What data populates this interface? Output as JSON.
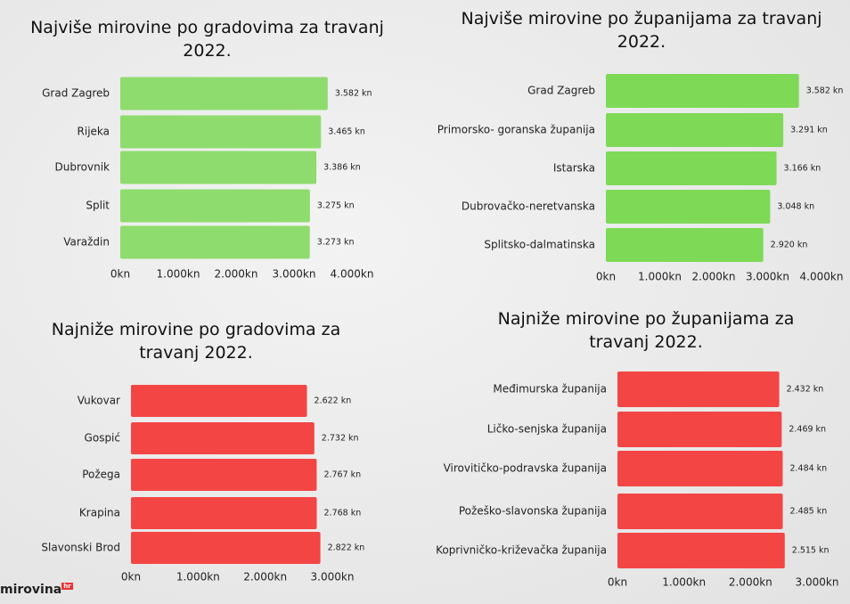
{
  "chart_data": [
    {
      "type": "bar",
      "orientation": "horizontal",
      "title": "Najviše mirovine po gradovima za travanj 2022.",
      "categories": [
        "Grad Zagreb",
        "Rijeka",
        "Dubrovnik",
        "Split",
        "Varaždin"
      ],
      "values": [
        3582,
        3465,
        3386,
        3275,
        3273
      ],
      "value_labels": [
        "3.582 kn",
        "3.465 kn",
        "3.386 kn",
        "3.275 kn",
        "3.273 kn"
      ],
      "color": "#8fdc6e",
      "xlim": [
        0,
        4000
      ],
      "xticks": [
        {
          "value": 0,
          "label": "0kn"
        },
        {
          "value": 1000,
          "label": "1.000kn"
        },
        {
          "value": 2000,
          "label": "2.000kn"
        },
        {
          "value": 3000,
          "label": "3.000kn"
        },
        {
          "value": 4000,
          "label": "4.000kn"
        }
      ]
    },
    {
      "type": "bar",
      "orientation": "horizontal",
      "title": "Najviše mirovine po županijama za travanj 2022.",
      "categories": [
        "Grad Zagreb",
        "Primorsko- goranska županija",
        "Istarska",
        "Dubrovačko-neretvanska",
        "Splitsko-dalmatinska"
      ],
      "values": [
        3582,
        3291,
        3166,
        3048,
        2920
      ],
      "value_labels": [
        "3.582 kn",
        "3.291 kn",
        "3.166 kn",
        "3.048 kn",
        "2.920 kn"
      ],
      "color": "#7ed957",
      "xlim": [
        0,
        4000
      ],
      "xticks": [
        {
          "value": 0,
          "label": "0kn"
        },
        {
          "value": 1000,
          "label": "1.000kn"
        },
        {
          "value": 2000,
          "label": "2.000kn"
        },
        {
          "value": 3000,
          "label": "3.000kn"
        },
        {
          "value": 4000,
          "label": "4.000kn"
        }
      ]
    },
    {
      "type": "bar",
      "orientation": "horizontal",
      "title": "Najniže mirovine po gradovima za travanj 2022.",
      "categories": [
        "Vukovar",
        "Gospić",
        "Požega",
        "Krapina",
        "Slavonski Brod"
      ],
      "values": [
        2622,
        2732,
        2767,
        2768,
        2822
      ],
      "value_labels": [
        "2.622 kn",
        "2.732 kn",
        "2.767 kn",
        "2.768 kn",
        "2.822 kn"
      ],
      "color": "#f44545",
      "xlim": [
        0,
        3000
      ],
      "xticks": [
        {
          "value": 0,
          "label": "0kn"
        },
        {
          "value": 1000,
          "label": "1.000kn"
        },
        {
          "value": 2000,
          "label": "2.000kn"
        },
        {
          "value": 3000,
          "label": "3.000kn"
        }
      ]
    },
    {
      "type": "bar",
      "orientation": "horizontal",
      "title": "Najniže mirovine po županijama za travanj 2022.",
      "categories": [
        "Međimurska županija",
        "Ličko-senjska županija",
        "Virovitičko-podravska županija",
        "Požeško-slavonska županija",
        "Koprivničko-križevačka županija"
      ],
      "values": [
        2432,
        2469,
        2484,
        2485,
        2515
      ],
      "value_labels": [
        "2.432 kn",
        "2.469 kn",
        "2.484 kn",
        "2.485 kn",
        "2.515 kn"
      ],
      "color": "#f44545",
      "xlim": [
        0,
        3000
      ],
      "xticks": [
        {
          "value": 0,
          "label": "0kn"
        },
        {
          "value": 1000,
          "label": "1.000kn"
        },
        {
          "value": 2000,
          "label": "2.000kn"
        },
        {
          "value": 3000,
          "label": "3.000kn"
        }
      ]
    }
  ],
  "logo": {
    "text": "mirovina",
    "badge": "hr"
  }
}
